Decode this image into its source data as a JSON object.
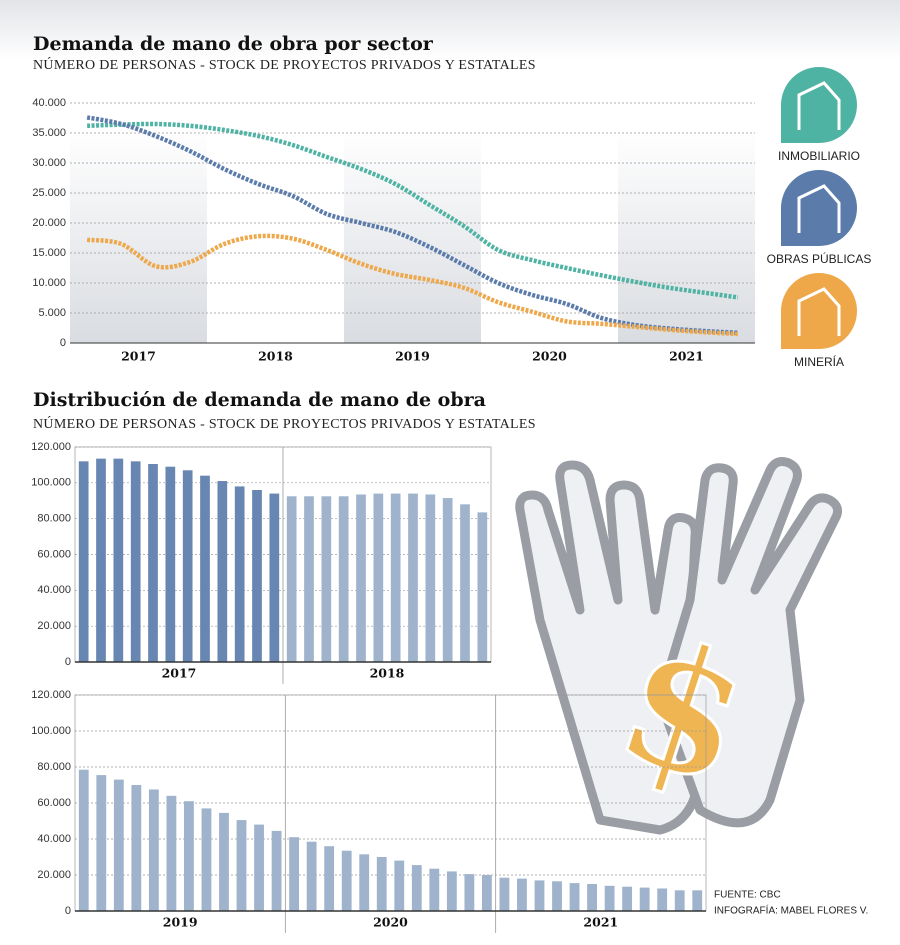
{
  "chart_data": [
    {
      "type": "line",
      "title": "Demanda de mano de obra por sector",
      "subtitle": "NÚMERO DE PERSONAS - STOCK DE PROYECTOS PRIVADOS Y ESTATALES",
      "categories": [
        null,
        null,
        "2017",
        null,
        null,
        null,
        "2018",
        null,
        null,
        null,
        "2019",
        null,
        null,
        null,
        "2020",
        null,
        null,
        null,
        "2021",
        null
      ],
      "series": [
        {
          "name": "INMOBILIARIO",
          "color": "#4fb3a3",
          "values": [
            36200,
            36400,
            36500,
            36200,
            35500,
            34500,
            33000,
            31000,
            29000,
            26500,
            23000,
            19500,
            15500,
            13800,
            12500,
            11300,
            10200,
            9200,
            8400,
            7600
          ]
        },
        {
          "name": "OBRAS PÚBLICAS",
          "color": "#5b7bab",
          "values": [
            37600,
            36500,
            34500,
            32000,
            29000,
            26500,
            24500,
            21500,
            20000,
            18500,
            16000,
            13000,
            10000,
            8000,
            6500,
            4200,
            3000,
            2400,
            2000,
            1700
          ]
        },
        {
          "name": "MINERÍA",
          "color": "#eea84a",
          "values": [
            17200,
            16500,
            12800,
            13500,
            16500,
            17800,
            17400,
            15500,
            13200,
            11500,
            10500,
            9200,
            6800,
            5200,
            3600,
            3200,
            2700,
            2200,
            1800,
            1500
          ]
        }
      ],
      "ylim": [
        0,
        40000
      ],
      "yticks": [
        0,
        {
          "value": 5000,
          "label": "5.000"
        },
        {
          "value": 10000,
          "label": "10.000"
        },
        {
          "value": 15000,
          "label": "15.000"
        },
        {
          "value": 20000,
          "label": "20.000"
        },
        {
          "value": 25000,
          "label": "25.000"
        },
        {
          "value": 30000,
          "label": "30.000"
        },
        {
          "value": 35000,
          "label": "35.000"
        },
        {
          "value": 40000,
          "label": "40.000"
        }
      ],
      "grid": true
    },
    {
      "type": "bar",
      "title": "Distribución de demanda de mano de obra",
      "subtitle": "NÚMERO DE PERSONAS - STOCK DE PROYECTOS PRIVADOS Y ESTATALES",
      "groups": [
        {
          "label": "2017",
          "color": "#6886b2",
          "values": [
            112000,
            113500,
            113500,
            112000,
            110500,
            109000,
            107000,
            104000,
            101000,
            98000,
            96000,
            94000
          ]
        },
        {
          "label": "2018",
          "color": "#9fb3cd",
          "values": [
            92500,
            92500,
            92500,
            92500,
            93500,
            94000,
            94000,
            94000,
            93500,
            91500,
            88000,
            83500
          ]
        }
      ],
      "ylim": [
        0,
        120000
      ],
      "yticks": [
        0,
        {
          "value": 20000,
          "label": "20.000"
        },
        {
          "value": 40000,
          "label": "40.000"
        },
        {
          "value": 60000,
          "label": "60.000"
        },
        {
          "value": 80000,
          "label": "80.000"
        },
        {
          "value": 100000,
          "label": "100.000"
        },
        {
          "value": 120000,
          "label": "120.000"
        }
      ],
      "grid": true
    },
    {
      "type": "bar",
      "groups": [
        {
          "label": "2019",
          "color": "#9fb3cd",
          "values": [
            78500,
            75500,
            73000,
            70000,
            67500,
            64000,
            61000,
            57000,
            54500,
            50500,
            48000,
            44500
          ]
        },
        {
          "label": "2020",
          "color": "#9fb3cd",
          "values": [
            41000,
            38500,
            36000,
            33500,
            31500,
            30000,
            28000,
            25500,
            23500,
            22000,
            20500,
            20000
          ]
        },
        {
          "label": "2021",
          "color": "#9fb3cd",
          "values": [
            18500,
            18000,
            17000,
            16500,
            15500,
            15000,
            14000,
            13500,
            13000,
            12500,
            11500,
            11500
          ]
        }
      ],
      "ylim": [
        0,
        120000
      ],
      "yticks": [
        0,
        {
          "value": 20000,
          "label": "20.000"
        },
        {
          "value": 40000,
          "label": "40.000"
        },
        {
          "value": 60000,
          "label": "60.000"
        },
        {
          "value": 80000,
          "label": "80.000"
        },
        {
          "value": 100000,
          "label": "100.000"
        },
        {
          "value": 120000,
          "label": "120.000"
        }
      ],
      "grid": true
    }
  ],
  "illustration": {
    "symbol": "$"
  },
  "source": {
    "fuente": "FUENTE: CBC",
    "infografia": "INFOGRAFÍA: MABEL FLORES V."
  }
}
